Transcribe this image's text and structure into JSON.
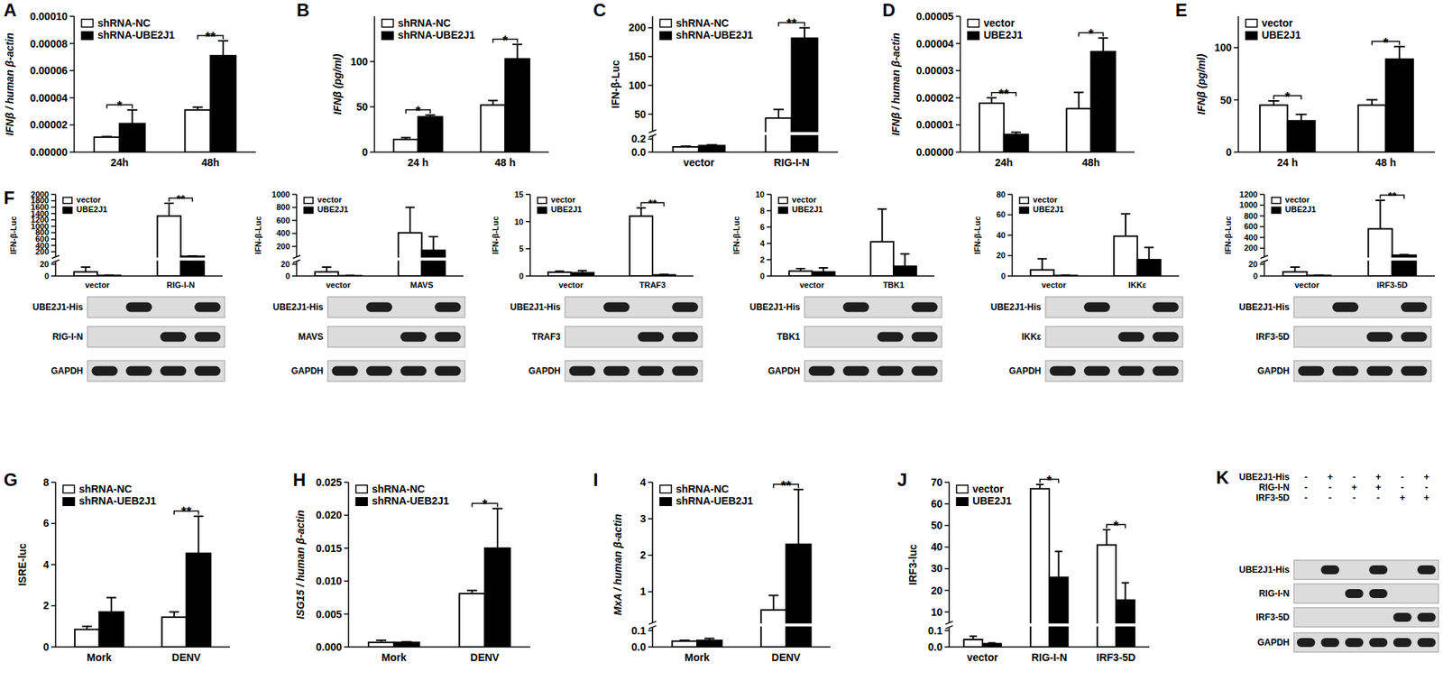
{
  "chart_data": [
    {
      "type": "bar",
      "title": "A",
      "y_label": "IFNβ / human β-actin",
      "categories": [
        "24h",
        "48h"
      ],
      "series": [
        {
          "name": "shRNA-NC",
          "color": "#ffffff",
          "values": [
            1.1e-05,
            3.1e-05
          ],
          "errors": [
            5e-07,
            2e-06
          ]
        },
        {
          "name": "shRNA-UBE2J1",
          "color": "#000000",
          "values": [
            2.1e-05,
            7.1e-05
          ],
          "errors": [
            1e-05,
            1.1e-05
          ]
        }
      ],
      "ylim": [
        0,
        0.0001
      ],
      "yticks": [
        {
          "value": 0,
          "label": "0.00000"
        },
        {
          "value": 2e-05,
          "label": "0.00002"
        },
        {
          "value": 4e-05,
          "label": "0.00004"
        },
        {
          "value": 6e-05,
          "label": "0.00006"
        },
        {
          "value": 8e-05,
          "label": "0.00008"
        },
        {
          "value": 0.0001,
          "label": "0.00010"
        }
      ],
      "legend": "upper left",
      "annotations": [
        {
          "text": "*",
          "at": 0
        },
        {
          "text": "**",
          "at": 1
        }
      ]
    },
    {
      "type": "bar",
      "title": "B",
      "y_label": "IFNβ (pg/ml)",
      "categories": [
        "24 h",
        "48 h"
      ],
      "series": [
        {
          "name": "shRNA-NC",
          "color": "#ffffff",
          "values": [
            14,
            52
          ],
          "errors": [
            2,
            5
          ]
        },
        {
          "name": "shRNA-UBE2J1",
          "color": "#000000",
          "values": [
            39,
            103
          ],
          "errors": [
            2,
            16
          ]
        }
      ],
      "ylim": [
        0,
        150
      ],
      "yticks": [
        0,
        50,
        100
      ],
      "legend": "upper left",
      "annotations": [
        {
          "text": "*",
          "at": 0
        },
        {
          "text": "*",
          "at": 1
        }
      ]
    },
    {
      "type": "bar",
      "title": "C",
      "y_label": "IFN-β-Luc",
      "categories": [
        "vector",
        "RIG-I-N"
      ],
      "series": [
        {
          "name": "shRNA-NC",
          "color": "#ffffff",
          "values": [
            0.08,
            43
          ],
          "errors": [
            0.01,
            15
          ]
        },
        {
          "name": "shRNA-UBE2J1",
          "color": "#000000",
          "values": [
            0.1,
            182
          ],
          "errors": [
            0.01,
            18
          ]
        }
      ],
      "ylim": [
        0,
        220
      ],
      "y_break": [
        0.25,
        20
      ],
      "yticks": [
        {
          "value": 0,
          "label": "0.0"
        },
        {
          "value": 0.2,
          "label": "0.2"
        },
        50,
        100,
        150,
        200
      ],
      "legend": "upper left",
      "annotations": [
        {
          "text": "**",
          "at": 1
        }
      ]
    },
    {
      "type": "bar",
      "title": "D",
      "y_label": "IFNβ / human β-actin",
      "categories": [
        "24h",
        "48h"
      ],
      "series": [
        {
          "name": "vector",
          "color": "#ffffff",
          "values": [
            1.8e-05,
            1.6e-05
          ],
          "errors": [
            2e-06,
            6e-06
          ]
        },
        {
          "name": "UBE2J1",
          "color": "#000000",
          "values": [
            6.5e-06,
            3.7e-05
          ],
          "errors": [
            8e-07,
            5e-06
          ]
        }
      ],
      "ylim": [
        0,
        5e-05
      ],
      "yticks": [
        {
          "value": 0,
          "label": "0.00000"
        },
        {
          "value": 1e-05,
          "label": "0.00001"
        },
        {
          "value": 2e-05,
          "label": "0.00002"
        },
        {
          "value": 3e-05,
          "label": "0.00003"
        },
        {
          "value": 4e-05,
          "label": "0.00004"
        },
        {
          "value": 5e-05,
          "label": "0.00005"
        }
      ],
      "legend": "upper left",
      "annotations": [
        {
          "text": "**",
          "at": 0
        },
        {
          "text": "*",
          "at": 1
        }
      ]
    },
    {
      "type": "bar",
      "title": "E",
      "y_label": "IFNβ (pg/ml)",
      "categories": [
        "24 h",
        "48 h"
      ],
      "series": [
        {
          "name": "vector",
          "color": "#ffffff",
          "values": [
            45,
            45
          ],
          "errors": [
            4,
            5
          ]
        },
        {
          "name": "UBE2J1",
          "color": "#000000",
          "values": [
            30,
            89
          ],
          "errors": [
            6,
            12
          ]
        }
      ],
      "ylim": [
        0,
        130
      ],
      "yticks": [
        0,
        50,
        100
      ],
      "legend": "upper left",
      "annotations": [
        {
          "text": "*",
          "at": 0
        },
        {
          "text": "*",
          "at": 1
        }
      ]
    },
    {
      "type": "bar",
      "title": "F",
      "y_label": "IFN-β-Luc",
      "categories": [
        "vector",
        "RIG-I-N"
      ],
      "series": [
        {
          "name": "vector",
          "color": "#ffffff",
          "values": [
            7,
            1320
          ],
          "errors": [
            8,
            400
          ]
        },
        {
          "name": "UBE2J1",
          "color": "#000000",
          "values": [
            1,
            60
          ],
          "errors": [
            0.5,
            8
          ]
        }
      ],
      "ylim": [
        0,
        2000
      ],
      "y_break": [
        25,
        40
      ],
      "yticks": [
        0,
        20,
        200,
        400,
        600,
        800,
        1000,
        1200,
        1400,
        1600,
        1800,
        2000
      ],
      "legend": "upper left",
      "annotations": [
        {
          "text": "**",
          "at": 1
        }
      ]
    },
    {
      "type": "bar",
      "y_label": "IFN-β-Luc",
      "categories": [
        "vector",
        "MAVS"
      ],
      "series": [
        {
          "name": "vector",
          "color": "#ffffff",
          "values": [
            7,
            410
          ],
          "errors": [
            8,
            390
          ]
        },
        {
          "name": "UBE2J1",
          "color": "#000000",
          "values": [
            0.5,
            140
          ],
          "errors": [
            0.3,
            210
          ]
        }
      ],
      "ylim": [
        0,
        1000
      ],
      "y_break": [
        25,
        40
      ],
      "yticks": [
        0,
        20,
        200,
        400,
        600,
        800,
        1000
      ],
      "legend": "upper left"
    },
    {
      "type": "bar",
      "y_label": "IFN-β-Luc",
      "categories": [
        "vector",
        "TRAF3"
      ],
      "series": [
        {
          "name": "vector",
          "color": "#ffffff",
          "values": [
            0.7,
            11
          ],
          "errors": [
            0.2,
            1.5
          ]
        },
        {
          "name": "UBE2J1",
          "color": "#000000",
          "values": [
            0.6,
            0.2
          ],
          "errors": [
            0.4,
            0.1
          ]
        }
      ],
      "ylim": [
        0,
        15
      ],
      "yticks": [
        0,
        5,
        10,
        15
      ],
      "legend": "upper left",
      "annotations": [
        {
          "text": "**",
          "at": 1
        }
      ]
    },
    {
      "type": "bar",
      "y_label": "IFN-β-Luc",
      "categories": [
        "vector",
        "TBK1"
      ],
      "series": [
        {
          "name": "vector",
          "color": "#ffffff",
          "values": [
            0.6,
            4.2
          ],
          "errors": [
            0.3,
            4
          ]
        },
        {
          "name": "UBE2J1",
          "color": "#000000",
          "values": [
            0.5,
            1.2
          ],
          "errors": [
            0.5,
            1.5
          ]
        }
      ],
      "ylim": [
        0,
        10
      ],
      "yticks": [
        0,
        2,
        4,
        6,
        8,
        10
      ],
      "legend": "upper left"
    },
    {
      "type": "bar",
      "y_label": "IFN-β-Luc",
      "categories": [
        "vector",
        "IKKε"
      ],
      "series": [
        {
          "name": "vector",
          "color": "#ffffff",
          "values": [
            6,
            39
          ],
          "errors": [
            11,
            22
          ]
        },
        {
          "name": "UBE2J1",
          "color": "#000000",
          "values": [
            0.5,
            16
          ],
          "errors": [
            0.5,
            12
          ]
        }
      ],
      "ylim": [
        0,
        80
      ],
      "yticks": [
        0,
        20,
        40,
        60,
        80
      ],
      "legend": "upper left"
    },
    {
      "type": "bar",
      "y_label": "IFN-β-Luc",
      "categories": [
        "vector",
        "IRF3-5D"
      ],
      "series": [
        {
          "name": "vector",
          "color": "#ffffff",
          "values": [
            7,
            560
          ],
          "errors": [
            8,
            530
          ]
        },
        {
          "name": "UBE2J1",
          "color": "#000000",
          "values": [
            1,
            70
          ],
          "errors": [
            0.5,
            10
          ]
        }
      ],
      "ylim": [
        0,
        1200
      ],
      "y_break": [
        25,
        40
      ],
      "yticks": [
        0,
        20,
        200,
        400,
        600,
        800,
        1000,
        1200
      ],
      "legend": "upper left",
      "annotations": [
        {
          "text": "**",
          "at": 1
        }
      ]
    },
    {
      "type": "bar",
      "title": "G",
      "y_label": "ISRE-luc",
      "categories": [
        "Mork",
        "DENV"
      ],
      "series": [
        {
          "name": "shRNA-NC",
          "color": "#ffffff",
          "values": [
            0.85,
            1.45
          ],
          "errors": [
            0.15,
            0.25
          ]
        },
        {
          "name": "shRNA-UEB2J1",
          "color": "#000000",
          "values": [
            1.7,
            4.55
          ],
          "errors": [
            0.7,
            1.8
          ]
        }
      ],
      "ylim": [
        0,
        8
      ],
      "yticks": [
        0,
        2,
        4,
        6,
        8
      ],
      "legend": "upper left",
      "annotations": [
        {
          "text": "**",
          "at": 1
        }
      ]
    },
    {
      "type": "bar",
      "title": "H",
      "y_label": "ISG15 / human β-actin",
      "categories": [
        "Mork",
        "DENV"
      ],
      "series": [
        {
          "name": "shRNA-NC",
          "color": "#ffffff",
          "values": [
            0.0007,
            0.0081
          ],
          "errors": [
            0.0003,
            0.0005
          ]
        },
        {
          "name": "shRNA-UEB2J1",
          "color": "#000000",
          "values": [
            0.0007,
            0.015
          ],
          "errors": [
            0.0001,
            0.006
          ]
        }
      ],
      "ylim": [
        0,
        0.025
      ],
      "yticks": [
        {
          "value": 0,
          "label": "0.000"
        },
        {
          "value": 0.005,
          "label": "0.005"
        },
        {
          "value": 0.01,
          "label": "0.010"
        },
        {
          "value": 0.015,
          "label": "0.015"
        },
        {
          "value": 0.02,
          "label": "0.020"
        },
        {
          "value": 0.025,
          "label": "0.025"
        }
      ],
      "legend": "upper left",
      "annotations": [
        {
          "text": "*",
          "at": 1
        }
      ]
    },
    {
      "type": "bar",
      "title": "I",
      "y_label": "MxA / human β-actin",
      "categories": [
        "Mork",
        "DENV"
      ],
      "series": [
        {
          "name": "shRNA-NC",
          "color": "#ffffff",
          "values": [
            0.035,
            0.5
          ],
          "errors": [
            0.005,
            0.4
          ]
        },
        {
          "name": "shRNA-UEB2J1",
          "color": "#000000",
          "values": [
            0.04,
            2.3
          ],
          "errors": [
            0.012,
            1.5
          ]
        }
      ],
      "ylim": [
        0,
        4
      ],
      "y_break": [
        0.12,
        0.15
      ],
      "yticks": [
        {
          "value": 0,
          "label": "0.0"
        },
        {
          "value": 0.1,
          "label": "0.1"
        },
        1,
        2,
        3,
        4
      ],
      "legend": "upper left",
      "annotations": [
        {
          "text": "**",
          "at": 1
        }
      ]
    },
    {
      "type": "bar",
      "title": "J",
      "y_label": "IRF3-luc",
      "categories": [
        "vector",
        "RIG-I-N",
        "IRF3-5D"
      ],
      "series": [
        {
          "name": "vector",
          "color": "#ffffff",
          "values": [
            0.045,
            67,
            41
          ],
          "errors": [
            0.02,
            2,
            7
          ]
        },
        {
          "name": "UBE2J1",
          "color": "#000000",
          "values": [
            0.02,
            26,
            15.5
          ],
          "errors": [
            0.005,
            12,
            8
          ]
        }
      ],
      "ylim": [
        0,
        70
      ],
      "y_break": [
        0.12,
        5
      ],
      "yticks": [
        {
          "value": 0,
          "label": "0.0"
        },
        {
          "value": 0.1,
          "label": "0.1"
        },
        10,
        20,
        30,
        40,
        50,
        60,
        70
      ],
      "legend": "upper left",
      "annotations": [
        {
          "text": "*",
          "at": 1
        },
        {
          "text": "*",
          "at": 2
        }
      ]
    }
  ],
  "blots": [
    {
      "rows": [
        {
          "label": "UBE2J1-His",
          "bands": [
            0,
            1,
            0,
            1
          ]
        },
        {
          "label": "RIG-I-N",
          "bands": [
            0,
            0,
            1,
            1
          ]
        },
        {
          "label": "GAPDH",
          "bands": [
            1,
            1,
            1,
            1
          ]
        }
      ]
    },
    {
      "rows": [
        {
          "label": "UBE2J1-His",
          "bands": [
            0,
            1,
            0,
            1
          ]
        },
        {
          "label": "MAVS",
          "bands": [
            0,
            0,
            1,
            1
          ]
        },
        {
          "label": "GAPDH",
          "bands": [
            1,
            1,
            1,
            1
          ]
        }
      ]
    },
    {
      "rows": [
        {
          "label": "UBE2J1-His",
          "bands": [
            0,
            1,
            0,
            1
          ]
        },
        {
          "label": "TRAF3",
          "bands": [
            0,
            0,
            1,
            1
          ]
        },
        {
          "label": "GAPDH",
          "bands": [
            1,
            1,
            1,
            1
          ]
        }
      ]
    },
    {
      "rows": [
        {
          "label": "UBE2J1-His",
          "bands": [
            0,
            1,
            0,
            1
          ]
        },
        {
          "label": "TBK1",
          "bands": [
            0,
            0,
            1,
            1
          ]
        },
        {
          "label": "GAPDH",
          "bands": [
            1,
            1,
            1,
            1
          ]
        }
      ]
    },
    {
      "rows": [
        {
          "label": "UBE2J1-His",
          "bands": [
            0,
            1,
            0,
            1
          ]
        },
        {
          "label": "IKKε",
          "bands": [
            0,
            0,
            1,
            1
          ]
        },
        {
          "label": "GAPDH",
          "bands": [
            1,
            1,
            1,
            1
          ]
        }
      ]
    },
    {
      "rows": [
        {
          "label": "UBE2J1-His",
          "bands": [
            0,
            1,
            0,
            1
          ]
        },
        {
          "label": "IRF3-5D",
          "bands": [
            0,
            0,
            1,
            1
          ]
        },
        {
          "label": "GAPDH",
          "bands": [
            1,
            1,
            1,
            1
          ]
        }
      ]
    },
    {
      "title": "K",
      "header": [
        {
          "label": "UBE2J1-His",
          "signs": [
            "-",
            "+",
            "-",
            "+",
            "-",
            "+"
          ]
        },
        {
          "label": "RIG-I-N",
          "signs": [
            "-",
            "-",
            "+",
            "+",
            "-",
            "-"
          ]
        },
        {
          "label": "IRF3-5D",
          "signs": [
            "-",
            "-",
            "-",
            "-",
            "+",
            "+"
          ]
        }
      ],
      "rows": [
        {
          "label": "UBE2J1-His",
          "bands": [
            0,
            1,
            0,
            1,
            0,
            1
          ]
        },
        {
          "label": "RIG-I-N",
          "bands": [
            0,
            0,
            1,
            1,
            0,
            0
          ]
        },
        {
          "label": "IRF3-5D",
          "bands": [
            0,
            0,
            0,
            0,
            1,
            1
          ]
        },
        {
          "label": "GAPDH",
          "bands": [
            1,
            1,
            1,
            1,
            1,
            1
          ]
        }
      ]
    }
  ]
}
